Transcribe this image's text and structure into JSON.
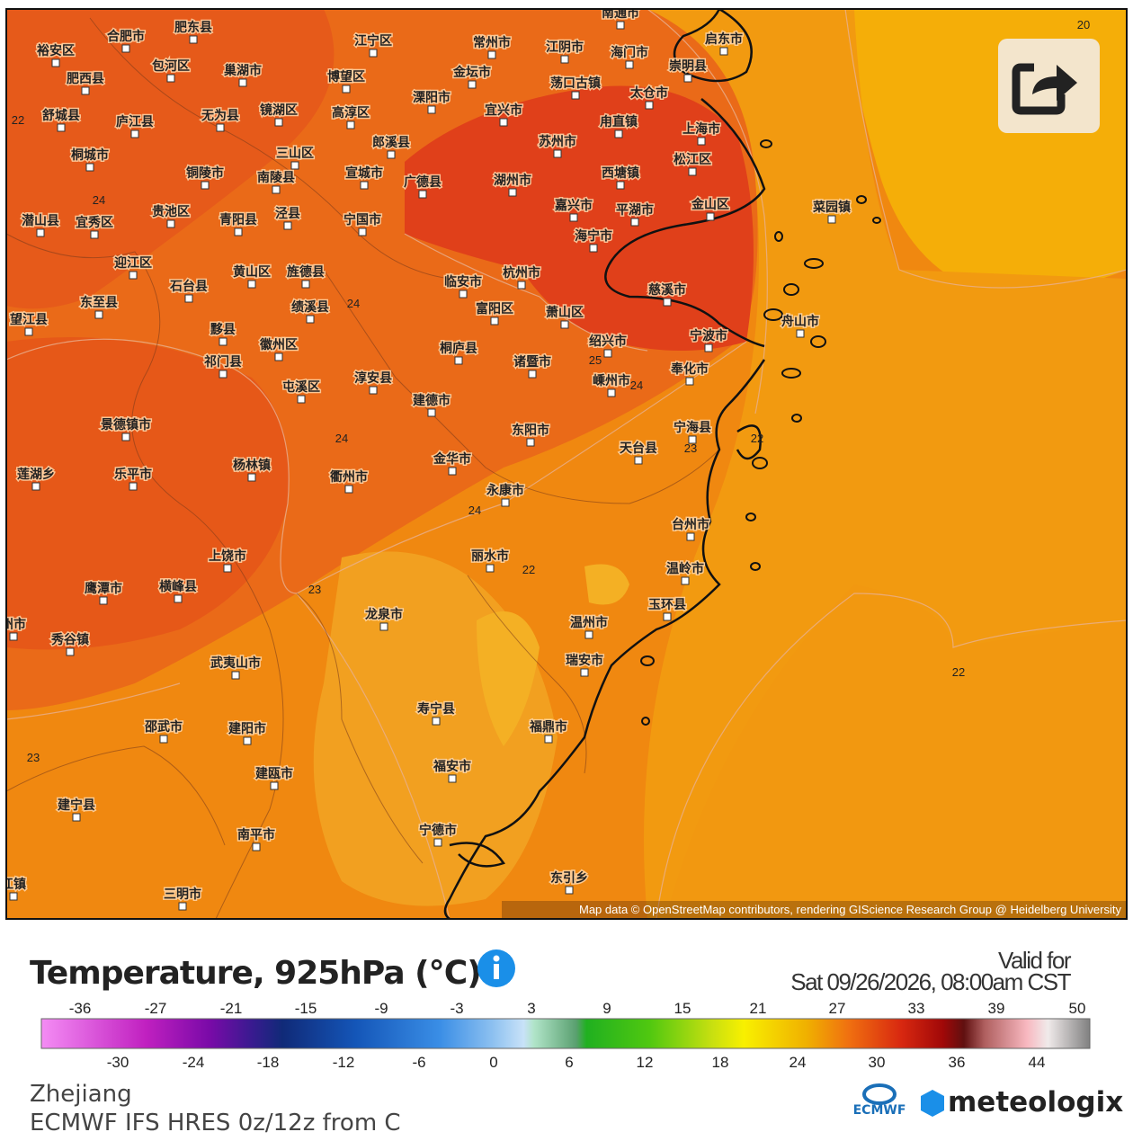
{
  "map": {
    "cities": [
      "南通市",
      "肥东县",
      "合肥市",
      "裕安区",
      "江宁区",
      "常州市",
      "江阴市",
      "海门市",
      "启东市",
      "肥西县",
      "包河区",
      "巢湖市",
      "博望区",
      "金坛市",
      "荡口古镇",
      "崇明县",
      "溧阳市",
      "宜兴市",
      "太仓市",
      "舒城县",
      "庐江县",
      "无为县",
      "镜湖区",
      "高淳区",
      "苏州市",
      "甪直镇",
      "上海市",
      "桐城市",
      "三山区",
      "郎溪县",
      "铜陵市",
      "南陵县",
      "宣城市",
      "广德县",
      "湖州市",
      "西塘镇",
      "松江区",
      "潜山县",
      "宜秀区",
      "贵池区",
      "青阳县",
      "泾县",
      "宁国市",
      "嘉兴市",
      "平湖市",
      "金山区",
      "菜园镇",
      "迎江区",
      "石台县",
      "黄山区",
      "旌德县",
      "临安市",
      "杭州市",
      "海宁市",
      "慈溪市",
      "东至县",
      "绩溪县",
      "富阳区",
      "萧山区",
      "舟山市",
      "望江县",
      "黟县",
      "徽州区",
      "祁门县",
      "屯溪区",
      "桐庐县",
      "诸暨市",
      "绍兴市",
      "宁波市",
      "奉化市",
      "淳安县",
      "嵊州市",
      "建德市",
      "景德镇市",
      "东阳市",
      "宁海县",
      "天台县",
      "莲湖乡",
      "乐平市",
      "杨林镇",
      "衢州市",
      "金华市",
      "永康市",
      "台州市",
      "上饶市",
      "丽水市",
      "温岭市",
      "鹰潭市",
      "横峰县",
      "龙泉市",
      "温州市",
      "玉环县",
      "州市",
      "秀谷镇",
      "武夷山市",
      "瑞安市",
      "邵武市",
      "建阳市",
      "寿宁县",
      "福鼎市",
      "福安市",
      "建瓯市",
      "建宁县",
      "南平市",
      "宁德市",
      "东引乡",
      "三明市",
      "江镇"
    ],
    "contour_labels": [
      "20",
      "22",
      "24",
      "24",
      "25",
      "24",
      "24",
      "23",
      "22",
      "24",
      "22",
      "23",
      "22",
      "23"
    ],
    "attribution": "Map data © OpenStreetMap contributors, rendering GIScience Research Group @ Heidelberg University"
  },
  "legend": {
    "title": "Temperature, 925hPa (℃)",
    "valid_label": "Valid for",
    "valid_time": "Sat 09/26/2026, 08:00am CST",
    "top_ticks": [
      -36,
      -27,
      -21,
      -15,
      -9,
      -3,
      3,
      9,
      15,
      21,
      27,
      33,
      39,
      50
    ],
    "bottom_ticks": [
      -30,
      -24,
      -18,
      -12,
      -6,
      0,
      6,
      12,
      18,
      24,
      30,
      36,
      44
    ]
  },
  "footer": {
    "region": "Zhejiang",
    "model": "ECMWF IFS HRES 0z/12z from C",
    "logo_ecmwf": "ECMWF",
    "logo_brand": "meteologix"
  }
}
